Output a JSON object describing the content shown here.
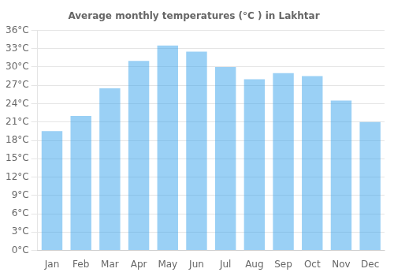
{
  "chart_data": {
    "type": "bar",
    "title": "Average monthly temperatures (°C ) in Lakhtar",
    "categories": [
      "Jan",
      "Feb",
      "Mar",
      "Apr",
      "May",
      "Jun",
      "Jul",
      "Aug",
      "Sep",
      "Oct",
      "Nov",
      "Dec"
    ],
    "values": [
      19.5,
      22.0,
      26.5,
      31.0,
      33.5,
      32.5,
      30.0,
      28.0,
      29.0,
      28.5,
      24.5,
      21.0
    ],
    "ylim": [
      0,
      36
    ],
    "yticks": [
      {
        "value": 0,
        "label": "0°C"
      },
      {
        "value": 3,
        "label": "3°C"
      },
      {
        "value": 6,
        "label": "6°C"
      },
      {
        "value": 9,
        "label": "9°C"
      },
      {
        "value": 12,
        "label": "12°C"
      },
      {
        "value": 15,
        "label": "15°C"
      },
      {
        "value": 18,
        "label": "18°C"
      },
      {
        "value": 21,
        "label": "21°C"
      },
      {
        "value": 24,
        "label": "24°C"
      },
      {
        "value": 27,
        "label": "27°C"
      },
      {
        "value": 30,
        "label": "30°C"
      },
      {
        "value": 33,
        "label": "33°C"
      },
      {
        "value": 36,
        "label": "36°C"
      }
    ],
    "grid": true
  }
}
